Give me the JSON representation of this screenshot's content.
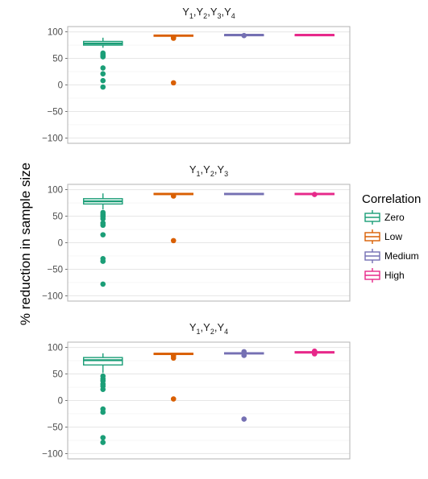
{
  "chart_data": {
    "type": "box",
    "ylabel": "% reduction in sample size",
    "ylim": [
      -110,
      110
    ],
    "yticks": [
      100,
      50,
      0,
      -50,
      -100
    ],
    "grid": true,
    "legend": {
      "title": "Correlation",
      "position": "right",
      "entries": [
        "Zero",
        "Low",
        "Medium",
        "High"
      ]
    },
    "colors": {
      "Zero": "#1b9e77",
      "Low": "#d95f02",
      "Medium": "#7570b3",
      "High": "#e7298a"
    },
    "panels": [
      {
        "title": {
          "base": "Y",
          "subs": [
            "1",
            "2",
            "3",
            "4"
          ]
        },
        "boxes": [
          {
            "group": "Zero",
            "q1": 75,
            "median": 78,
            "q3": 82,
            "whisker_low": 70,
            "whisker_high": 89,
            "outliers": [
              60,
              57,
              55,
              53,
              32,
              21,
              8,
              -4
            ]
          },
          {
            "group": "Low",
            "q1": 92,
            "median": 93,
            "q3": 94,
            "whisker_low": 92,
            "whisker_high": 94,
            "outliers": [
              90,
              88,
              4
            ]
          },
          {
            "group": "Medium",
            "q1": 94,
            "median": 94.5,
            "q3": 95,
            "whisker_low": 94,
            "whisker_high": 95,
            "outliers": [
              93
            ]
          },
          {
            "group": "High",
            "q1": 94,
            "median": 94.5,
            "q3": 95,
            "whisker_low": 94,
            "whisker_high": 95,
            "outliers": []
          }
        ]
      },
      {
        "title": {
          "base": "Y",
          "subs": [
            "1",
            "2",
            "3"
          ]
        },
        "boxes": [
          {
            "group": "Zero",
            "q1": 73,
            "median": 78,
            "q3": 83,
            "whisker_low": 63,
            "whisker_high": 93,
            "outliers": [
              57,
              54,
              52,
              49,
              45,
              37,
              33,
              15,
              -30,
              -35,
              -78
            ]
          },
          {
            "group": "Low",
            "q1": 91,
            "median": 92,
            "q3": 93,
            "whisker_low": 91,
            "whisker_high": 93,
            "outliers": [
              88,
              4
            ]
          },
          {
            "group": "Medium",
            "q1": 91,
            "median": 92,
            "q3": 93,
            "whisker_low": 91,
            "whisker_high": 93,
            "outliers": []
          },
          {
            "group": "High",
            "q1": 91.5,
            "median": 92,
            "q3": 93,
            "whisker_low": 91,
            "whisker_high": 93,
            "outliers": [
              91
            ]
          }
        ]
      },
      {
        "title": {
          "base": "Y",
          "subs": [
            "1",
            "2",
            "4"
          ]
        },
        "boxes": [
          {
            "group": "Zero",
            "q1": 67,
            "median": 76,
            "q3": 81,
            "whisker_low": 52,
            "whisker_high": 89,
            "outliers": [
              46,
              41,
              37,
              31,
              27,
              21,
              -16,
              -22,
              -70,
              -79
            ]
          },
          {
            "group": "Low",
            "q1": 87,
            "median": 88,
            "q3": 89,
            "whisker_low": 87,
            "whisker_high": 89,
            "outliers": [
              84,
              80,
              3
            ]
          },
          {
            "group": "Medium",
            "q1": 88,
            "median": 89,
            "q3": 90,
            "whisker_low": 88,
            "whisker_high": 90,
            "outliers": [
              92,
              85,
              -35
            ]
          },
          {
            "group": "High",
            "q1": 89.5,
            "median": 91,
            "q3": 92,
            "whisker_low": 89,
            "whisker_high": 93,
            "outliers": [
              93,
              88
            ]
          }
        ]
      }
    ]
  }
}
